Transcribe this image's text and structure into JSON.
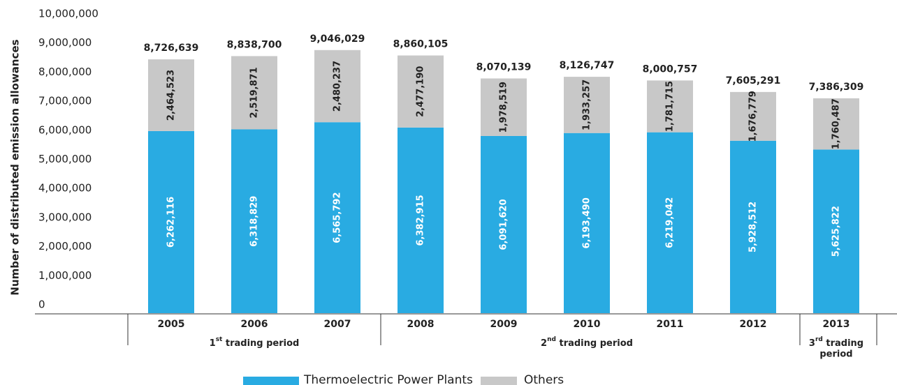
{
  "chart_data": {
    "type": "stacked_bar",
    "y_axis_label": "Number of distributed emission allowances",
    "categories": [
      "2005",
      "2006",
      "2007",
      "2008",
      "2009",
      "2010",
      "2011",
      "2012",
      "2013"
    ],
    "series": [
      {
        "name": "Thermoelectric Power Plants",
        "color": "#29abe2",
        "values": [
          6262116,
          6318829,
          6565792,
          6382915,
          6091620,
          6193490,
          6219042,
          5928512,
          5625822
        ],
        "value_labels": [
          "6,262,116",
          "6,318,829",
          "6,565,792",
          "6,382,915",
          "6,091,620",
          "6,193,490",
          "6,219,042",
          "5,928,512",
          "5,625,822"
        ]
      },
      {
        "name": "Others",
        "color": "#c8c8c8",
        "values": [
          2464523,
          2519871,
          2480237,
          2477190,
          1978519,
          1933257,
          1781715,
          1676779,
          1760487
        ],
        "value_labels": [
          "2,464,523",
          "2,519,871",
          "2,480,237",
          "2,477,190",
          "1,978,519",
          "1,933,257",
          "1,781,715",
          "1,676,779",
          "1,760,487"
        ]
      }
    ],
    "totals": {
      "values": [
        8726639,
        8838700,
        9046029,
        8860105,
        8070139,
        8126747,
        8000757,
        7605291,
        7386309
      ],
      "value_labels": [
        "8,726,639",
        "8,838,700",
        "9,046,029",
        "8,860,105",
        "8,070,139",
        "8,126,747",
        "8,000,757",
        "7,605,291",
        "7,386,309"
      ]
    },
    "periods": [
      {
        "ordinal": "1",
        "suffix": "st",
        "label": "trading period"
      },
      {
        "ordinal": "2",
        "suffix": "nd",
        "label": "trading period"
      },
      {
        "ordinal": "3",
        "suffix": "rd",
        "label": "trading",
        "label_line2": "period"
      }
    ],
    "ylim": [
      0,
      10000000
    ],
    "yticks": [
      0,
      {
        "value": 1000000,
        "label": "1,000,000"
      },
      {
        "value": 2000000,
        "label": "2,000,000"
      },
      {
        "value": 3000000,
        "label": "3,000,000"
      },
      {
        "value": 4000000,
        "label": "4,000,000"
      },
      {
        "value": 5000000,
        "label": "5,000,000"
      },
      {
        "value": 6000000,
        "label": "6,000,000"
      },
      {
        "value": 7000000,
        "label": "7,000,000"
      },
      {
        "value": 8000000,
        "label": "8,000,000"
      },
      {
        "value": 9000000,
        "label": "9,000,000"
      },
      {
        "value": 10000000,
        "label": "10,000,000"
      }
    ],
    "grid": false,
    "legend": "bottom"
  }
}
